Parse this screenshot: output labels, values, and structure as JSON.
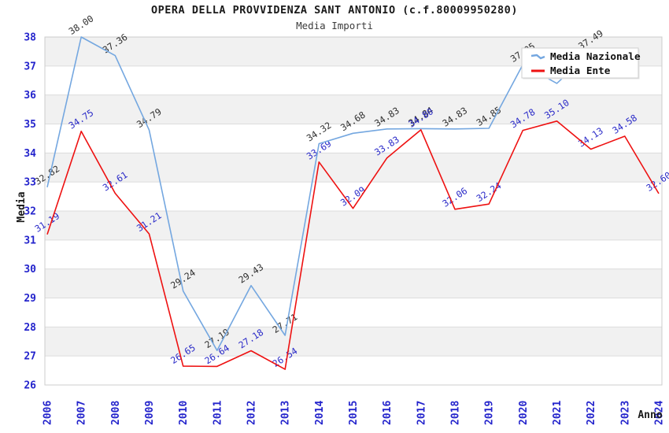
{
  "chart_data": {
    "type": "line",
    "title": "OPERA DELLA PROVVIDENZA SANT ANTONIO (c.f.80009950280)",
    "subtitle": "Media Importi",
    "xlabel": "Anno",
    "ylabel": "Media",
    "x": [
      2006,
      2007,
      2008,
      2009,
      2010,
      2011,
      2012,
      2013,
      2014,
      2015,
      2016,
      2017,
      2018,
      2019,
      2020,
      2021,
      2022,
      2023,
      2024
    ],
    "ylim": [
      26,
      38
    ],
    "y_ticks": [
      26,
      27,
      28,
      29,
      30,
      31,
      32,
      33,
      34,
      35,
      36,
      37,
      38
    ],
    "grid": true,
    "alternating_bands": true,
    "legend_position": "top-right",
    "series": [
      {
        "name": "Media Nazionale",
        "color": "#74a7e0",
        "label_color": "#2f2f2f",
        "values": [
          32.82,
          38.0,
          37.36,
          34.79,
          29.24,
          27.19,
          29.43,
          27.71,
          34.32,
          34.68,
          34.83,
          34.84,
          34.83,
          34.85,
          37.05,
          36.4,
          37.49,
          null,
          null
        ],
        "skip_label_indices": [
          15
        ]
      },
      {
        "name": "Media Ente",
        "color": "#ee1111",
        "label_color": "#2a2ac8",
        "values": [
          31.19,
          34.75,
          32.61,
          31.21,
          26.65,
          26.64,
          27.18,
          26.54,
          33.69,
          32.09,
          33.83,
          34.8,
          32.06,
          32.24,
          34.78,
          35.1,
          34.13,
          34.58,
          32.6
        ],
        "skip_label_indices": []
      }
    ]
  },
  "colors": {
    "axis_tick_text": "#2424cc",
    "axis_title_text": "#1a1a1a",
    "band_gray": "#f1f1f1",
    "gridline": "#dcdcdc",
    "plot_border": "#cccccc",
    "legend_bg": "#ffffff",
    "legend_border": "#cfcfcf",
    "legend_text": "#111111"
  }
}
